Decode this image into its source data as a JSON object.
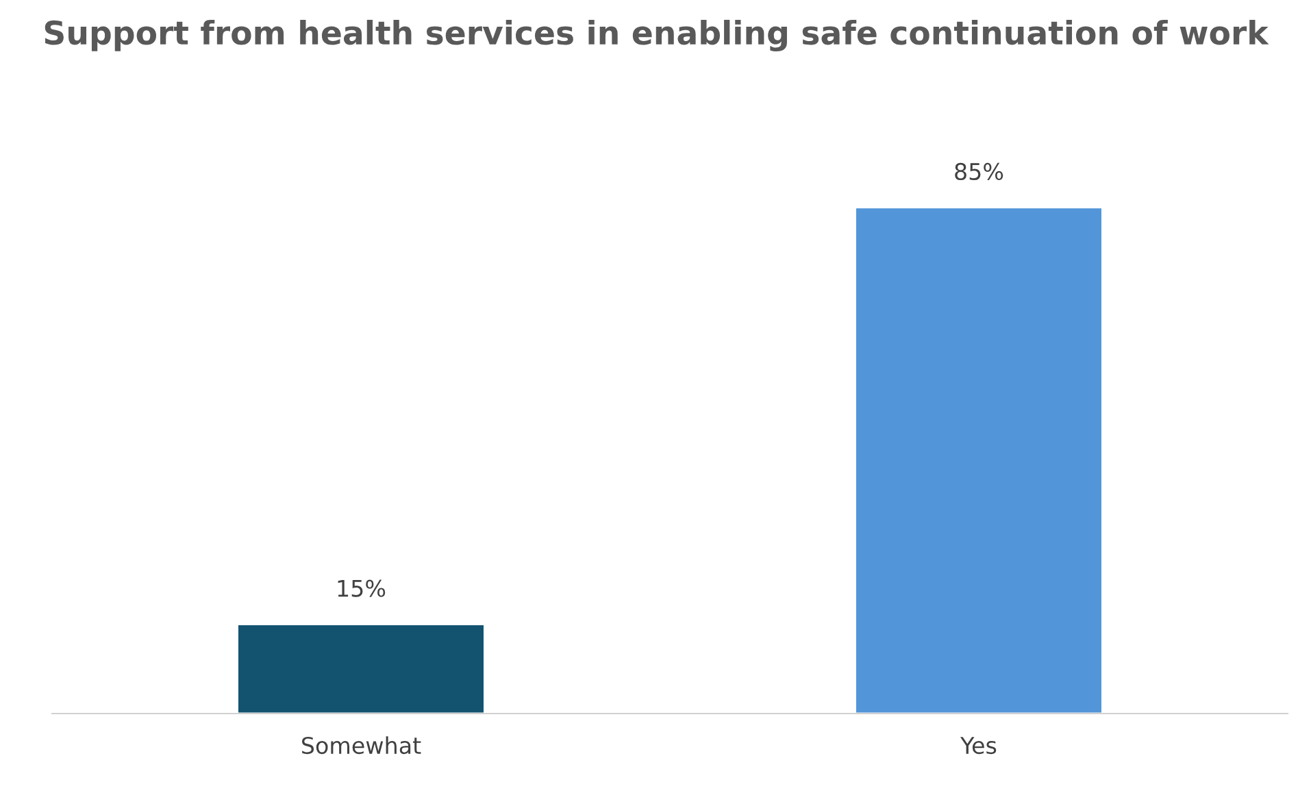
{
  "chart_data": {
    "type": "bar",
    "title": "Support from health services in enabling safe continuation of work",
    "categories": [
      "Somewhat",
      "Yes"
    ],
    "values": [
      15,
      85
    ],
    "colors": [
      "#135370",
      "#5296d9"
    ],
    "value_labels": [
      "15%",
      "85%"
    ],
    "grid": false,
    "legend": false
  }
}
